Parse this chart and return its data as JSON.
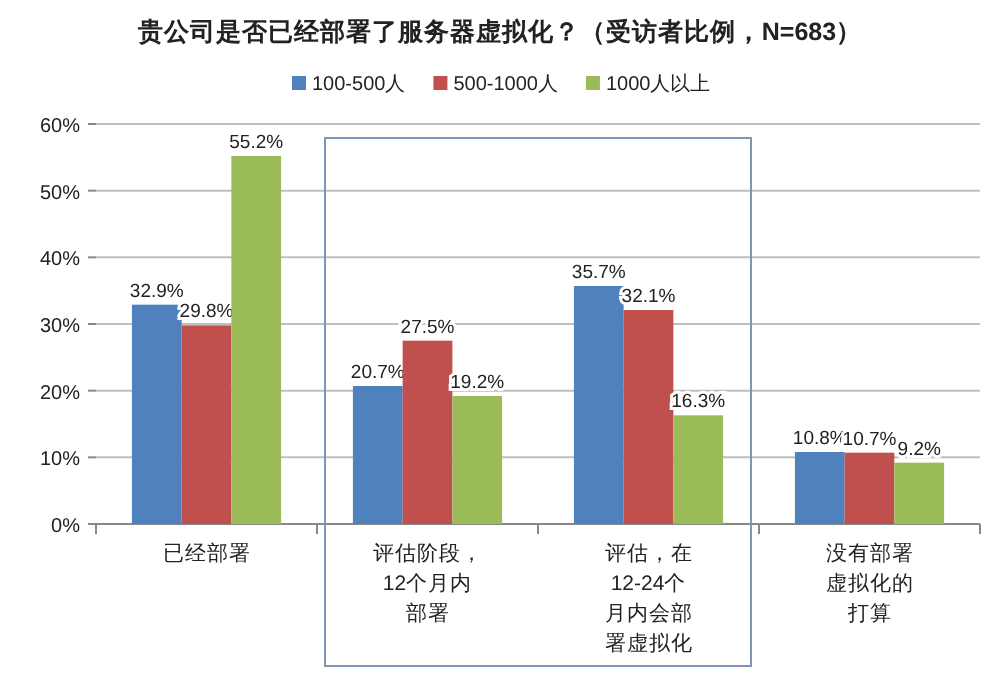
{
  "chart_data": {
    "type": "bar",
    "title": "贵公司是否已经部署了服务器虚拟化？（受访者比例，N=683）",
    "categories": [
      "已经部署",
      "评估阶段，12个月内部署",
      "评估，在12-24个月内会部署虚拟化",
      "没有部署虚拟化的打算"
    ],
    "series": [
      {
        "name": "100-500人",
        "color": "#4f81bd",
        "values": [
          32.9,
          20.7,
          35.7,
          10.8
        ],
        "value_labels": [
          "32.9%",
          "20.7%",
          "35.7%",
          "10.8%"
        ]
      },
      {
        "name": "500-1000人",
        "color": "#c0504d",
        "values": [
          29.8,
          27.5,
          32.1,
          10.7
        ],
        "value_labels": [
          "29.8%",
          "27.5%",
          "32.1%",
          "10.7%"
        ]
      },
      {
        "name": "1000人以上",
        "color": "#9bbb59",
        "values": [
          55.2,
          19.2,
          16.3,
          9.2
        ],
        "value_labels": [
          "55.2%",
          "19.2%",
          "16.3%",
          "9.2%"
        ]
      }
    ],
    "ylim": [
      0,
      60
    ],
    "yticks": [
      {
        "value": 0,
        "label": "0%"
      },
      {
        "value": 10,
        "label": "10%"
      },
      {
        "value": 20,
        "label": "20%"
      },
      {
        "value": 30,
        "label": "30%"
      },
      {
        "value": 40,
        "label": "40%"
      },
      {
        "value": 50,
        "label": "50%"
      },
      {
        "value": 60,
        "label": "60%"
      }
    ],
    "grid": "y",
    "legend": "top"
  }
}
